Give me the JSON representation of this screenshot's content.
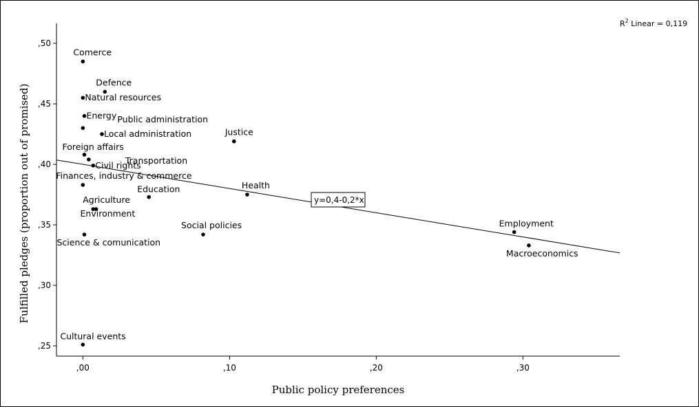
{
  "chart_data": {
    "type": "scatter",
    "xlabel": "Public policy preferences",
    "ylabel": "Fulfilled pledges (proportion out of promised)",
    "xlim": [
      -0.018,
      0.366
    ],
    "ylim": [
      0.2415,
      0.5165
    ],
    "x_ticks": [
      {
        "value": 0.0,
        "label": ",00"
      },
      {
        "value": 0.1,
        "label": ",10"
      },
      {
        "value": 0.2,
        "label": ",20"
      },
      {
        "value": 0.3,
        "label": ",30"
      }
    ],
    "y_ticks": [
      {
        "value": 0.25,
        "label": ",25"
      },
      {
        "value": 0.3,
        "label": ",30"
      },
      {
        "value": 0.35,
        "label": ",35"
      },
      {
        "value": 0.4,
        "label": ",40"
      },
      {
        "value": 0.45,
        "label": ",45"
      },
      {
        "value": 0.5,
        "label": ",50"
      }
    ],
    "r2_label": {
      "base": "R",
      "sup": "2",
      "rest": " Linear = 0,119"
    },
    "fit_line": {
      "intercept": 0.4,
      "slope": -0.2,
      "label": "y=0,4-0,2*x"
    },
    "grid": false,
    "points": [
      {
        "x": 0.0,
        "y": 0.485,
        "label": "Comerce"
      },
      {
        "x": 0.015,
        "y": 0.46,
        "label": "Defence"
      },
      {
        "x": 0.0,
        "y": 0.455,
        "label": "Natural resources"
      },
      {
        "x": 0.001,
        "y": 0.44,
        "label": "Energy"
      },
      {
        "x": 0.0,
        "y": 0.43,
        "label": "Public administration"
      },
      {
        "x": 0.013,
        "y": 0.425,
        "label": "Local administration"
      },
      {
        "x": 0.103,
        "y": 0.419,
        "label": "Justice"
      },
      {
        "x": 0.001,
        "y": 0.408,
        "label": "Foreign affairs"
      },
      {
        "x": 0.004,
        "y": 0.404,
        "label": "Transportation"
      },
      {
        "x": 0.007,
        "y": 0.399,
        "label": "Civil rights"
      },
      {
        "x": 0.0,
        "y": 0.383,
        "label": "Finances, industry & commerce"
      },
      {
        "x": 0.045,
        "y": 0.373,
        "label": "Education"
      },
      {
        "x": 0.112,
        "y": 0.375,
        "label": "Health"
      },
      {
        "x": 0.007,
        "y": 0.363,
        "label": "Agriculture"
      },
      {
        "x": 0.009,
        "y": 0.363,
        "label": "Environment"
      },
      {
        "x": 0.082,
        "y": 0.342,
        "label": "Social policies"
      },
      {
        "x": 0.001,
        "y": 0.342,
        "label": "Science & comunication"
      },
      {
        "x": 0.294,
        "y": 0.344,
        "label": "Employment"
      },
      {
        "x": 0.304,
        "y": 0.333,
        "label": "Macroeconomics"
      },
      {
        "x": 0.0,
        "y": 0.251,
        "label": "Cultural events"
      }
    ]
  }
}
